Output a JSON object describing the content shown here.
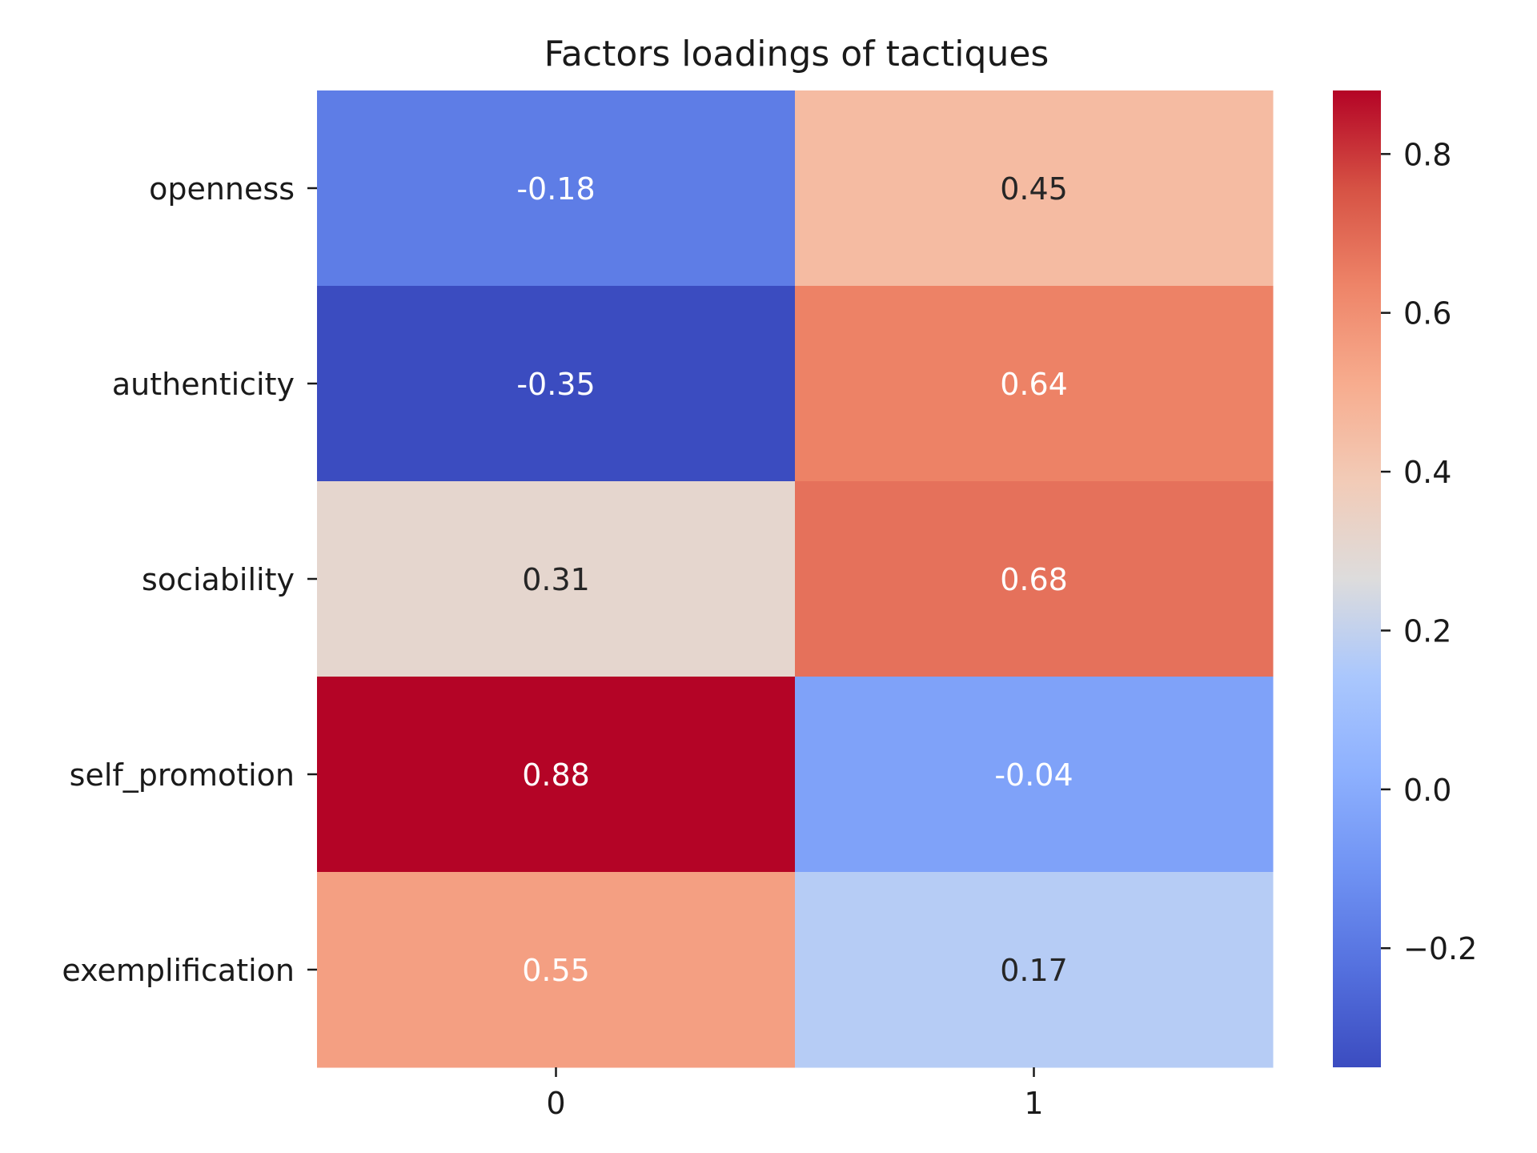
{
  "chart_data": {
    "type": "heatmap",
    "title": "Factors loadings of tactiques",
    "xlabel": "",
    "ylabel": "",
    "x_categories": [
      "0",
      "1"
    ],
    "y_categories": [
      "openness",
      "authenticity",
      "sociability",
      "self_promotion",
      "exemplification"
    ],
    "values": [
      [
        -0.18,
        0.45
      ],
      [
        -0.35,
        0.64
      ],
      [
        0.31,
        0.68
      ],
      [
        0.88,
        -0.04
      ],
      [
        0.55,
        0.17
      ]
    ],
    "cell_labels": [
      [
        "-0.18",
        "0.45"
      ],
      [
        "-0.35",
        "0.64"
      ],
      [
        "0.31",
        "0.68"
      ],
      [
        "0.88",
        "-0.04"
      ],
      [
        "0.55",
        "0.17"
      ]
    ],
    "colormap": "coolwarm",
    "colorbar": {
      "vmin": -0.35,
      "vmax": 0.88,
      "ticks": [
        0.8,
        0.6,
        0.4,
        0.2,
        0.0,
        -0.2
      ],
      "tick_labels": [
        "0.8",
        "0.6",
        "0.4",
        "0.2",
        "0.0",
        "−0.2"
      ],
      "placement": "right"
    },
    "grid": false,
    "legend": "none"
  }
}
